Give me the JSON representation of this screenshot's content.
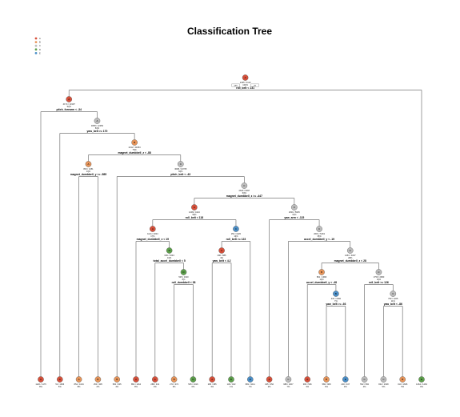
{
  "title": "Classification Tree",
  "legend": [
    {
      "label": "A",
      "color": "#d7503a"
    },
    {
      "label": "B",
      "color": "#e8955a"
    },
    {
      "label": "C",
      "color": "#bdbdbd"
    },
    {
      "label": "D",
      "color": "#5da04b"
    },
    {
      "label": "E",
      "color": "#4b8fc8"
    }
  ],
  "tree": {
    "cls": "A",
    "l1": "A",
    "l2": "2435 / 4110",
    "l3": "100%",
    "split": "roll_belt < 131",
    "yes": "yes",
    "no": "no",
    "children": [
      {
        "cls": "A",
        "l1": "A",
        "l2": "4174 / 13107",
        "l3": "92%",
        "split": "pitch_forearm < -34",
        "children": [
          {
            "cls": "A",
            "leaf": true,
            "l1": "A",
            "l2": "1120 / 1175",
            "l3": "8%"
          },
          {
            "cls": "C",
            "l1": "A",
            "l2": "3058 / 12250",
            "l3": "84%",
            "split": "yaw_belt >= 170",
            "children": [
              {
                "cls": "A",
                "leaf": true,
                "l1": "A",
                "l2": "52 / 1066",
                "l3": "5%"
              },
              {
                "cls": "B",
                "l1": "B",
                "l2": "2212 / 11064",
                "l3": "75%",
                "split": "magnet_dumbbell_z < -88",
                "children": [
                  {
                    "cls": "B",
                    "l1": "A",
                    "l2": "803 / 1451",
                    "l3": "10%",
                    "split": "magnet_dumbbell_y >= -585",
                    "children": [
                      {
                        "cls": "B",
                        "leaf": true,
                        "l1": "A",
                        "l2": "854 / 1164",
                        "l3": "8%"
                      },
                      {
                        "cls": "B",
                        "leaf": true,
                        "l1": "B",
                        "l2": "253 / 305",
                        "l3": "2%"
                      }
                    ]
                  },
                  {
                    "cls": "C",
                    "l1": "C",
                    "l2": "3098 / 10705",
                    "l3": "66%",
                    "split": "pitch_belt < -43",
                    "children": [
                      {
                        "cls": "B",
                        "leaf": true,
                        "l1": "B",
                        "l2": "584 / 605",
                        "l3": "4%"
                      },
                      {
                        "cls": "C",
                        "l1": "C",
                        "l2": "2629 / 9097",
                        "l3": "60%",
                        "split": "magnet_dumbbell_z >= -447",
                        "children": [
                          {
                            "cls": "A",
                            "l1": "A",
                            "l2": "1209 / 4144",
                            "l3": "30%",
                            "split": "roll_belt < 118",
                            "children": [
                              {
                                "cls": "A",
                                "l1": "A",
                                "l2": "1141 / 2034",
                                "l3": "17%",
                                "split": "magnet_dumbbell_x < 19",
                                "children": [
                                  {
                                    "cls": "A",
                                    "leaf": true,
                                    "l1": "A",
                                    "l2": "854 / 1164",
                                    "l3": "8%"
                                  },
                                  {
                                    "cls": "D",
                                    "l1": "D",
                                    "l2": "636 / 1043",
                                    "l3": "10%",
                                    "split": "total_accel_dumbbell < 5",
                                    "children": [
                                      {
                                        "cls": "A",
                                        "leaf": true,
                                        "l1": "A",
                                        "l2": "288 / 431",
                                        "l3": "3%"
                                      },
                                      {
                                        "cls": "D",
                                        "l1": "D",
                                        "l2": "525 / 1620",
                                        "l3": "8%",
                                        "split": "roll_dumbbell < 38",
                                        "children": [
                                          {
                                            "cls": "B",
                                            "leaf": true,
                                            "l1": "B",
                                            "l2": "273 / 374",
                                            "l3": "3%"
                                          },
                                          {
                                            "cls": "D",
                                            "leaf": true,
                                            "l1": "D",
                                            "l2": "505 / 1016",
                                            "l3": "6%"
                                          }
                                        ]
                                      }
                                    ]
                                  }
                                ]
                              },
                              {
                                "cls": "E",
                                "l1": "C",
                                "l2": "254 / 1020",
                                "l3": "13%",
                                "split": "roll_belt >= 123",
                                "children": [
                                  {
                                    "cls": "A",
                                    "l1": "A",
                                    "l2": "290 / 985",
                                    "l3": "4%",
                                    "split": "yaw_belt < 4.2",
                                    "children": [
                                      {
                                        "cls": "A",
                                        "leaf": true,
                                        "l1": "A",
                                        "l2": "286 / 385",
                                        "l3": "3%"
                                      },
                                      {
                                        "cls": "D",
                                        "leaf": true,
                                        "l1": "D",
                                        "l2": "136 / 182",
                                        "l3": "1%"
                                      }
                                    ]
                                  },
                                  {
                                    "cls": "E",
                                    "leaf": true,
                                    "l1": "E",
                                    "l2": "881 / 1011",
                                    "l3": "7%"
                                  }
                                ]
                              }
                            ]
                          },
                          {
                            "cls": "C",
                            "l1": "C",
                            "l2": "2631 / 5645",
                            "l3": "37%",
                            "split": "yaw_arm < -115",
                            "children": [
                              {
                                "cls": "A",
                                "leaf": true,
                                "l1": "A",
                                "l2": "325 / 352",
                                "l3": "2%"
                              },
                              {
                                "cls": "C",
                                "l1": "C",
                                "l2": "2615 / 5163",
                                "l3": "35%",
                                "split": "accel_dumbbell_y < -19",
                                "children": [
                                  {
                                    "cls": "C",
                                    "leaf": true,
                                    "l1": "C",
                                    "l2": "988 / 1007",
                                    "l3": "7%"
                                  },
                                  {
                                    "cls": "C",
                                    "l1": "C",
                                    "l2": "1451 / 4007",
                                    "l3": "28%",
                                    "split": "magnet_dumbbell_z < 28",
                                    "children": [
                                      {
                                        "cls": "B",
                                        "l1": "B",
                                        "l2": "861 / 1996",
                                        "l3": "14%",
                                        "split": "accel_dumbbell_y < -48",
                                        "children": [
                                          {
                                            "cls": "A",
                                            "leaf": true,
                                            "l1": "A",
                                            "l2": "383 / 536",
                                            "l3": "3%"
                                          },
                                          {
                                            "cls": "E",
                                            "l1": "B",
                                            "l2": "415 / 1500",
                                            "l3": "7%",
                                            "split": "yaw_belt >= -93",
                                            "children": [
                                              {
                                                "cls": "B",
                                                "leaf": true,
                                                "l1": "B",
                                                "l2": "580 / 908",
                                                "l3": "6%"
                                              },
                                              {
                                                "cls": "E",
                                                "leaf": true,
                                                "l1": "E",
                                                "l2": "230 / 437",
                                                "l3": "3%"
                                              }
                                            ]
                                          }
                                        ]
                                      },
                                      {
                                        "cls": "C",
                                        "l1": "C",
                                        "l2": "1750 / 2683",
                                        "l3": "19%",
                                        "split": "roll_belt >= 126",
                                        "children": [
                                          {
                                            "cls": "C",
                                            "leaf": true,
                                            "l1": "C",
                                            "l2": "552 / 584",
                                            "l3": "4%"
                                          },
                                          {
                                            "cls": "C",
                                            "l1": "C",
                                            "l2": "790 / 1225",
                                            "l3": "11%",
                                            "split": "yaw_belt < -86",
                                            "children": [
                                              {
                                                "cls": "C",
                                                "leaf": true,
                                                "l1": "C",
                                                "l2": "842 / 1638",
                                                "l3": "5%"
                                              },
                                              {
                                                "cls": "B",
                                                "leaf": true,
                                                "l1": "B",
                                                "l2": "310 / 1695",
                                                "l3": "5%"
                                              }
                                            ]
                                          }
                                        ]
                                      }
                                    ]
                                  }
                                ]
                              }
                            ]
                          }
                        ]
                      }
                    ]
                  }
                ]
              }
            ]
          }
        ]
      },
      {
        "cls": "D",
        "leaf": true,
        "l1": "E",
        "l2": "1264 / 1463",
        "l3": "9%"
      }
    ]
  }
}
